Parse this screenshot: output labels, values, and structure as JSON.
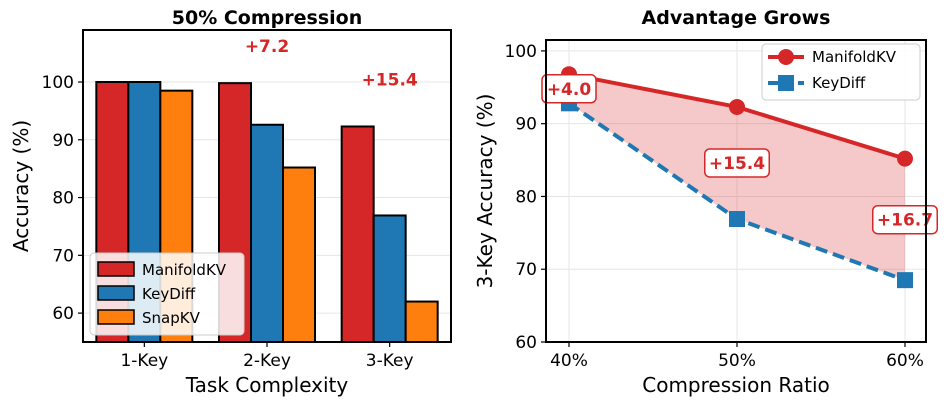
{
  "chart_data": [
    {
      "type": "bar",
      "title": "50% Compression",
      "xlabel": "Task Complexity",
      "ylabel": "Accuracy (%)",
      "ylim": [
        55,
        109
      ],
      "yticks": [
        60,
        70,
        80,
        90,
        100
      ],
      "grid": true,
      "categories": [
        "1-Key",
        "2-Key",
        "3-Key"
      ],
      "series": [
        {
          "name": "ManifoldKV",
          "color": "#d62728",
          "values": [
            100.0,
            99.8,
            92.3
          ]
        },
        {
          "name": "KeyDiff",
          "color": "#1f77b4",
          "values": [
            100.0,
            92.6,
            76.9
          ]
        },
        {
          "name": "SnapKV",
          "color": "#ff7f0e",
          "values": [
            98.5,
            85.2,
            62.0
          ]
        }
      ],
      "legend_position": "lower-left",
      "annotations": [
        {
          "text": "+7.2",
          "category": "2-Key",
          "y": 106.2,
          "color": "#d62728"
        },
        {
          "text": "+15.4",
          "category": "3-Key",
          "y": 100.4,
          "color": "#d62728"
        }
      ]
    },
    {
      "type": "line",
      "title": "Advantage Grows",
      "xlabel": "Compression Ratio",
      "ylabel": "3-Key Accuracy (%)",
      "ylim": [
        60,
        101.5
      ],
      "yticks": [
        60,
        70,
        80,
        90,
        100
      ],
      "grid": true,
      "x": [
        "40%",
        "50%",
        "60%"
      ],
      "series": [
        {
          "name": "ManifoldKV",
          "color": "#d62728",
          "marker": "circle",
          "linestyle": "solid",
          "values": [
            96.8,
            92.3,
            85.2
          ]
        },
        {
          "name": "KeyDiff",
          "color": "#1f77b4",
          "marker": "square",
          "linestyle": "dashed",
          "values": [
            92.8,
            76.9,
            68.5
          ]
        }
      ],
      "fill_between": {
        "color": "#d62728",
        "opacity": 0.25
      },
      "legend_position": "top-right",
      "annotations": [
        {
          "text": "+4.0",
          "x_index": 0,
          "y": 94.8
        },
        {
          "text": "+15.4",
          "x_index": 1,
          "y": 84.6
        },
        {
          "text": "+16.7",
          "x_index": 2,
          "y": 76.8
        }
      ]
    }
  ]
}
